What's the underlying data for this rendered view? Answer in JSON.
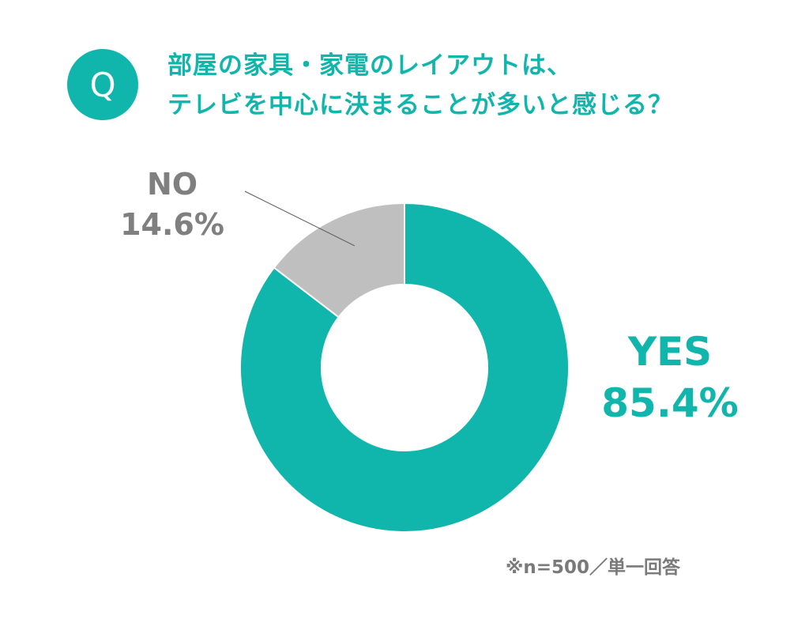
{
  "question": {
    "badge": "Q",
    "title_line1": "部屋の家具・家電のレイアウトは、",
    "title_line2": "テレビを中心に決まることが多いと感じる？"
  },
  "note": "※n=500／単一回答",
  "colors": {
    "accent": "#10b5ac",
    "no_slice": "#bfbfbf",
    "no_text": "#7f7f7f",
    "slice_border": "#ffffff",
    "leader_line": "#595959"
  },
  "chart_data": {
    "type": "pie",
    "donut": true,
    "slices": [
      {
        "label": "YES",
        "value": 85.4,
        "value_text": "85.4%",
        "color": "#10b5ac"
      },
      {
        "label": "NO",
        "value": 14.6,
        "value_text": "14.6%",
        "color": "#bfbfbf"
      }
    ],
    "start_angle": "12 o'clock",
    "direction": "clockwise"
  }
}
